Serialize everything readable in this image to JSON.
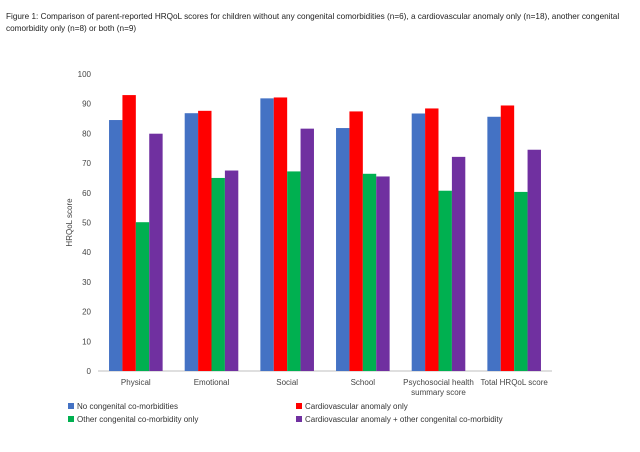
{
  "caption": "Figure 1: Comparison of parent-reported HRQoL scores for children without any congenital comorbidities (n=6), a cardiovascular anomaly only (n=18), another congenital comorbidity only (n=8) or both (n=9)",
  "chart_data": {
    "type": "bar",
    "title": "",
    "ylabel": "HRQoL score",
    "xlabel": "",
    "ylim": [
      0,
      100
    ],
    "yticks": [
      0,
      10,
      20,
      30,
      40,
      50,
      60,
      70,
      80,
      90,
      100
    ],
    "grid": false,
    "legend_position": "bottom",
    "categories": [
      [
        "Physical"
      ],
      [
        "Emotional"
      ],
      [
        "Social"
      ],
      [
        "School"
      ],
      [
        "Psychosocial health",
        "summary score"
      ],
      [
        "Total  HRQoL score"
      ]
    ],
    "series": [
      {
        "name": "No congenital co-morbidities",
        "color": "#4472C4",
        "values": [
          84.5,
          86.8,
          91.8,
          81.8,
          86.7,
          85.6
        ]
      },
      {
        "name": "Cardiovascular anomaly only",
        "color": "#FF0000",
        "values": [
          92.9,
          87.6,
          92.1,
          87.4,
          88.4,
          89.4
        ]
      },
      {
        "name": "Other congenital co-morbidity only",
        "color": "#00B050",
        "values": [
          50.1,
          65.0,
          67.2,
          66.4,
          60.7,
          60.3
        ]
      },
      {
        "name": "Cardiovascular anomaly + other congenital co-morbidity",
        "color": "#7030A0",
        "values": [
          79.9,
          67.5,
          81.6,
          65.5,
          72.1,
          74.5
        ]
      }
    ]
  }
}
